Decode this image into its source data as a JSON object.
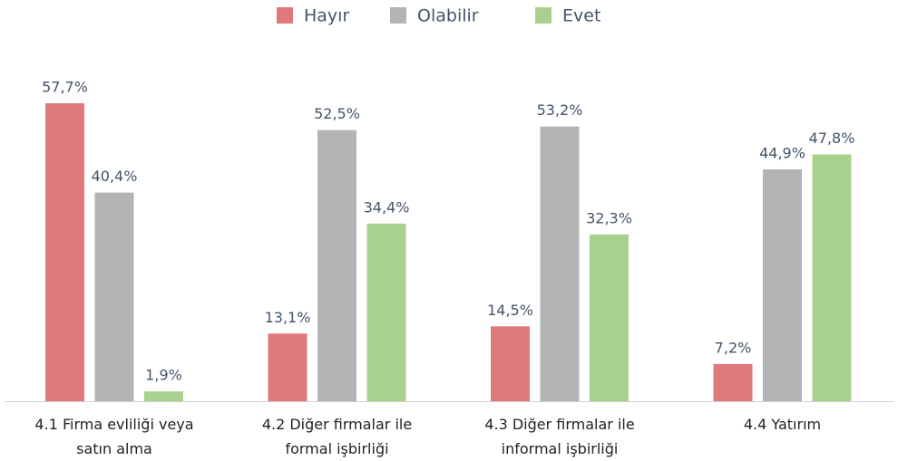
{
  "chart_data": {
    "type": "bar",
    "categories": [
      "4.1 Firma evliliği veya satın alma",
      "4.2 Diğer firmalar ile formal işbirliği",
      "4.3 Diğer firmalar ile informal işbirliği",
      "4.4 Yatırım"
    ],
    "series": [
      {
        "name": "Hayır",
        "color": "#e07a7a",
        "values": [
          57.7,
          13.1,
          14.5,
          7.2
        ],
        "value_labels": [
          "57,7%",
          "13,1%",
          "14,5%",
          "7,2%"
        ]
      },
      {
        "name": "Olabilir",
        "color": "#b2b4b6",
        "values": [
          40.4,
          52.5,
          53.2,
          44.9
        ],
        "value_labels": [
          "40,4%",
          "52,5%",
          "53,2%",
          "44,9%"
        ]
      },
      {
        "name": "Evet",
        "color": "#a9d18e",
        "values": [
          1.9,
          34.4,
          32.3,
          47.8
        ],
        "value_labels": [
          "1,9%",
          "34,4%",
          "32,3%",
          "47,8%"
        ]
      }
    ],
    "legend": "top"
  }
}
